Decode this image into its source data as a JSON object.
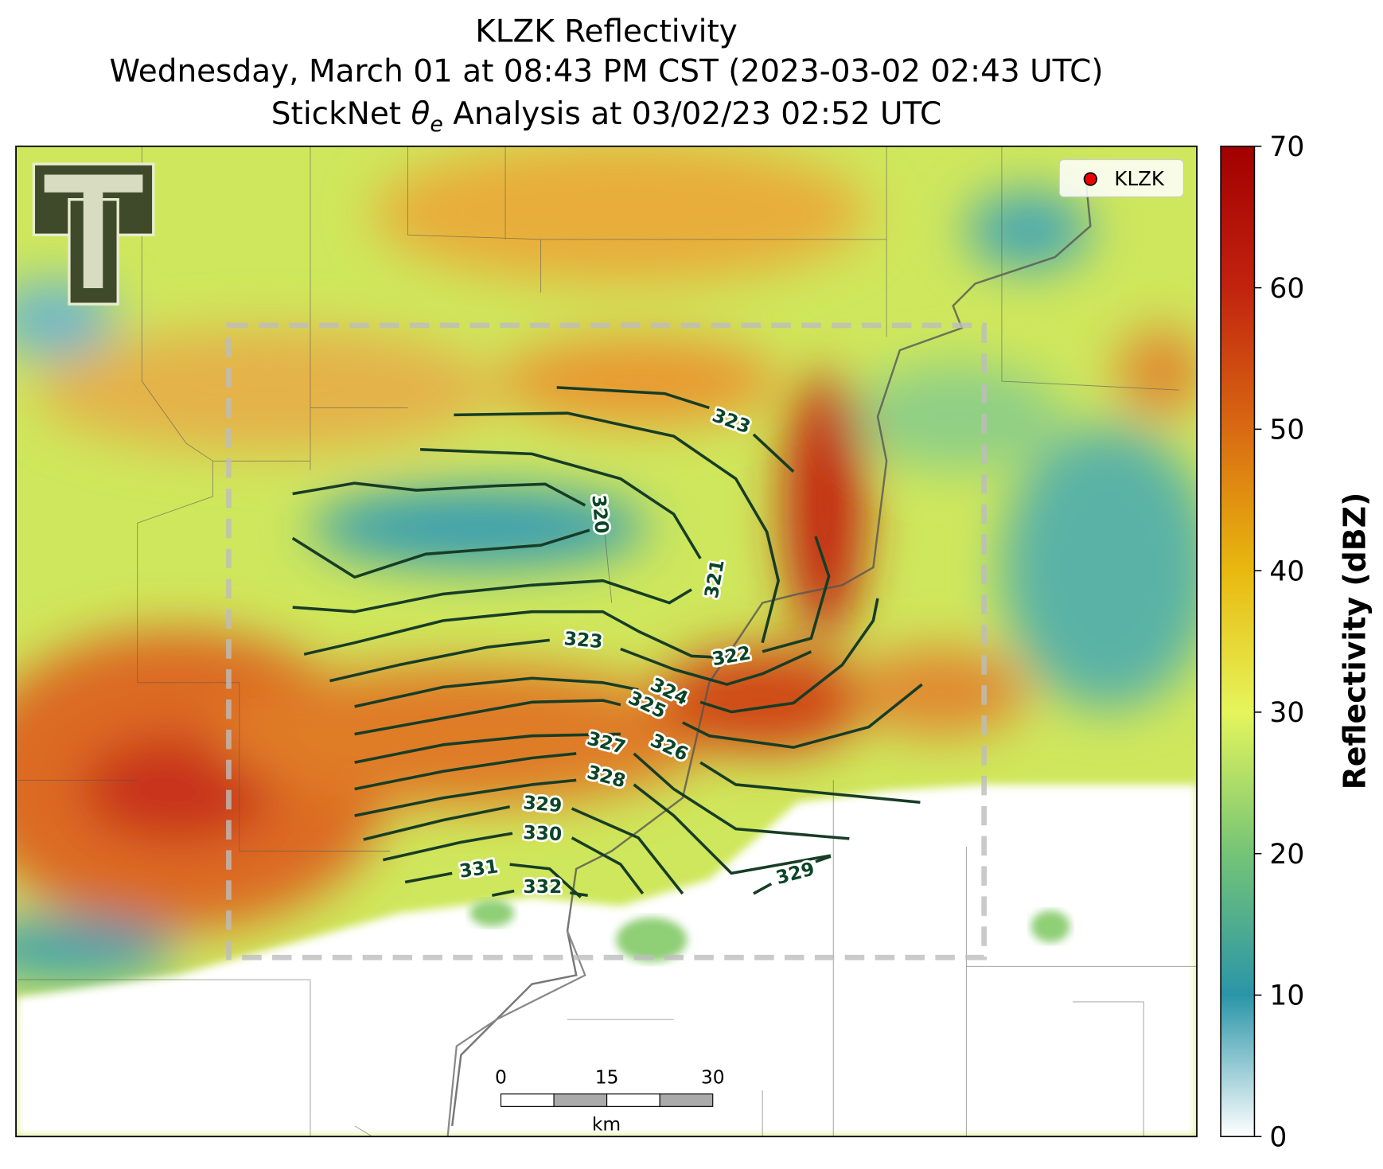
{
  "header": {
    "title": "KLZK Reflectivity",
    "subtitle": "Wednesday, March 01 at 08:43 PM CST (2023-03-02 02:43 UTC)",
    "analysis_prefix": "StickNet ",
    "analysis_symbol": "θ",
    "analysis_subscript": "e",
    "analysis_suffix": " Analysis at 03/02/23 02:52 UTC"
  },
  "legend": {
    "label": "KLZK"
  },
  "colorbar": {
    "label": "Reflectivity (dBZ)",
    "lim": [
      0,
      70
    ],
    "ticks": [
      0,
      10,
      20,
      30,
      40,
      50,
      60,
      70
    ]
  },
  "scalebar": {
    "unit": "km",
    "ticks": [
      0,
      15,
      30
    ]
  },
  "contours": {
    "labels": [
      323,
      320,
      321,
      322,
      323,
      324,
      325,
      326,
      327,
      328,
      329,
      330,
      331,
      332,
      329
    ]
  }
}
